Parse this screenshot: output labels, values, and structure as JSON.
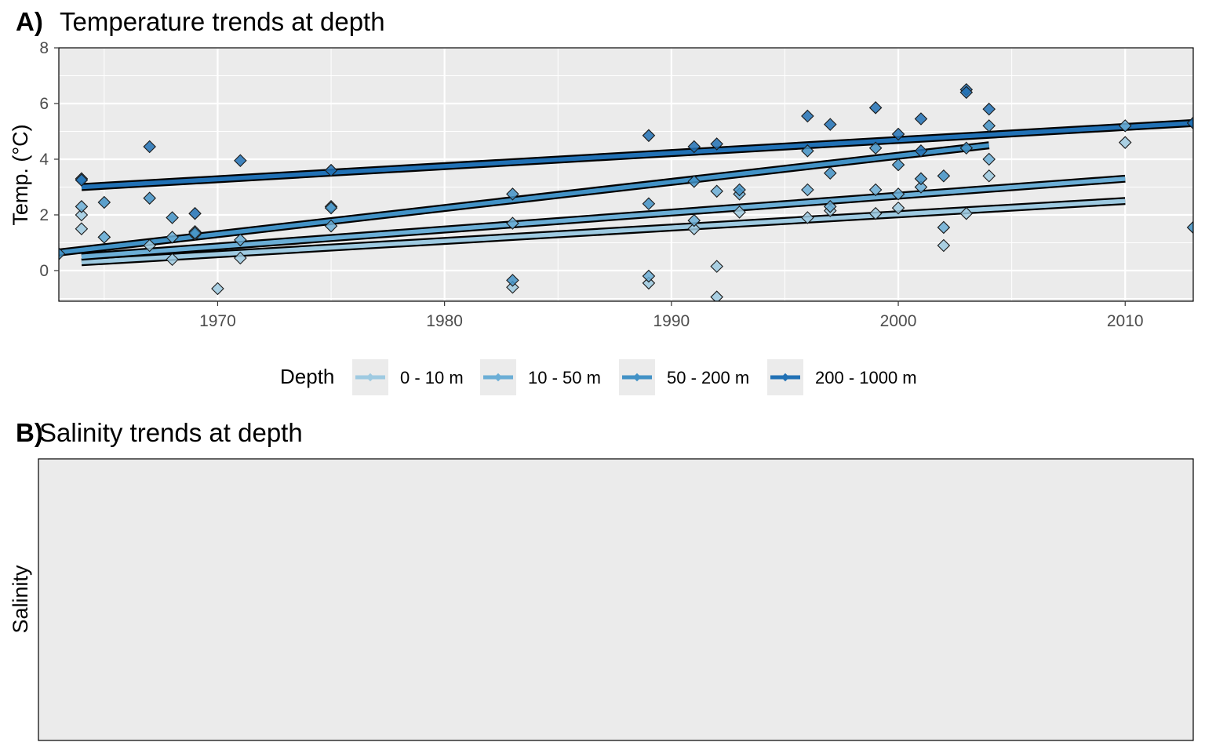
{
  "chart_data": [
    {
      "type": "scatter",
      "panel_tag": "A)",
      "title": "Temperature trends at depth",
      "xlabel": "",
      "ylabel": "Temp. (°C)",
      "xlim": [
        1963,
        2013
      ],
      "ylim": [
        -1.1,
        8
      ],
      "x_ticks": [
        1970,
        1980,
        1990,
        2000,
        2010
      ],
      "y_ticks": [
        0,
        2,
        4,
        6,
        8
      ],
      "grid": true,
      "legend": {
        "title": "Depth",
        "placement": "bottom",
        "entries": [
          "0 - 10 m",
          "10 - 50 m",
          "50 - 200 m",
          "200 - 1000 m"
        ]
      },
      "series": [
        {
          "name": "0 - 10 m",
          "color": "#9ecae1",
          "points": [
            [
              1964,
              1.5
            ],
            [
              1964,
              2.0
            ],
            [
              1965,
              1.2
            ],
            [
              1967,
              0.9
            ],
            [
              1968,
              0.4
            ],
            [
              1969,
              1.4
            ],
            [
              1970,
              -0.65
            ],
            [
              1971,
              0.45
            ],
            [
              1975,
              2.3
            ],
            [
              1983,
              -0.6
            ],
            [
              1989,
              -0.45
            ],
            [
              1991,
              1.5
            ],
            [
              1992,
              -0.95
            ],
            [
              1992,
              0.15
            ],
            [
              1993,
              2.1
            ],
            [
              1996,
              1.9
            ],
            [
              1997,
              2.15
            ],
            [
              1999,
              2.05
            ],
            [
              2000,
              2.25
            ],
            [
              2002,
              0.9
            ],
            [
              2003,
              2.05
            ],
            [
              2004,
              3.4
            ],
            [
              2010,
              4.6
            ]
          ],
          "trend": [
            [
              1964,
              0.3
            ],
            [
              2010,
              2.5
            ]
          ]
        },
        {
          "name": "10 - 50 m",
          "color": "#6baed6",
          "points": [
            [
              1964,
              2.3
            ],
            [
              1965,
              1.2
            ],
            [
              1968,
              1.2
            ],
            [
              1969,
              1.3
            ],
            [
              1971,
              1.1
            ],
            [
              1975,
              1.6
            ],
            [
              1983,
              1.7
            ],
            [
              1989,
              -0.2
            ],
            [
              1991,
              1.8
            ],
            [
              1992,
              2.85
            ],
            [
              1993,
              2.75
            ],
            [
              1996,
              2.9
            ],
            [
              1997,
              2.3
            ],
            [
              1999,
              2.9
            ],
            [
              2000,
              2.75
            ],
            [
              2001,
              3.0
            ],
            [
              2002,
              1.55
            ],
            [
              2004,
              4.0
            ],
            [
              2010,
              5.2
            ]
          ],
          "trend": [
            [
              1964,
              0.5
            ],
            [
              2010,
              3.3
            ]
          ]
        },
        {
          "name": "50 - 200 m",
          "color": "#4292c6",
          "points": [
            [
              1963,
              0.6
            ],
            [
              1964,
              3.3
            ],
            [
              1965,
              2.45
            ],
            [
              1967,
              2.6
            ],
            [
              1968,
              1.9
            ],
            [
              1969,
              1.35
            ],
            [
              1975,
              2.25
            ],
            [
              1983,
              2.75
            ],
            [
              1983,
              -0.35
            ],
            [
              1989,
              2.4
            ],
            [
              1991,
              3.2
            ],
            [
              1993,
              2.9
            ],
            [
              1996,
              4.3
            ],
            [
              1997,
              3.5
            ],
            [
              1999,
              4.4
            ],
            [
              2000,
              3.8
            ],
            [
              2001,
              3.3
            ],
            [
              2002,
              3.4
            ],
            [
              2003,
              4.4
            ],
            [
              2004,
              5.2
            ],
            [
              2013,
              1.55
            ]
          ],
          "trend": [
            [
              1963,
              0.65
            ],
            [
              2004,
              4.5
            ]
          ]
        },
        {
          "name": "200 - 1000 m",
          "color": "#2171b5",
          "points": [
            [
              1964,
              3.25
            ],
            [
              1967,
              4.45
            ],
            [
              1969,
              2.05
            ],
            [
              1971,
              3.95
            ],
            [
              1975,
              3.6
            ],
            [
              1989,
              4.85
            ],
            [
              1991,
              4.45
            ],
            [
              1992,
              4.55
            ],
            [
              1996,
              5.55
            ],
            [
              1997,
              5.25
            ],
            [
              1999,
              5.85
            ],
            [
              2000,
              4.9
            ],
            [
              2001,
              5.45
            ],
            [
              2001,
              4.3
            ],
            [
              2003,
              6.5
            ],
            [
              2003,
              6.4
            ],
            [
              2004,
              5.8
            ],
            [
              2013,
              5.3
            ]
          ],
          "trend": [
            [
              1964,
              3.0
            ],
            [
              2013,
              5.3
            ]
          ]
        }
      ]
    },
    {
      "type": "scatter",
      "panel_tag": "B)",
      "title": "Salinity trends at depth",
      "xlabel": "",
      "ylabel": "Salinity",
      "grid": false,
      "series": []
    }
  ]
}
